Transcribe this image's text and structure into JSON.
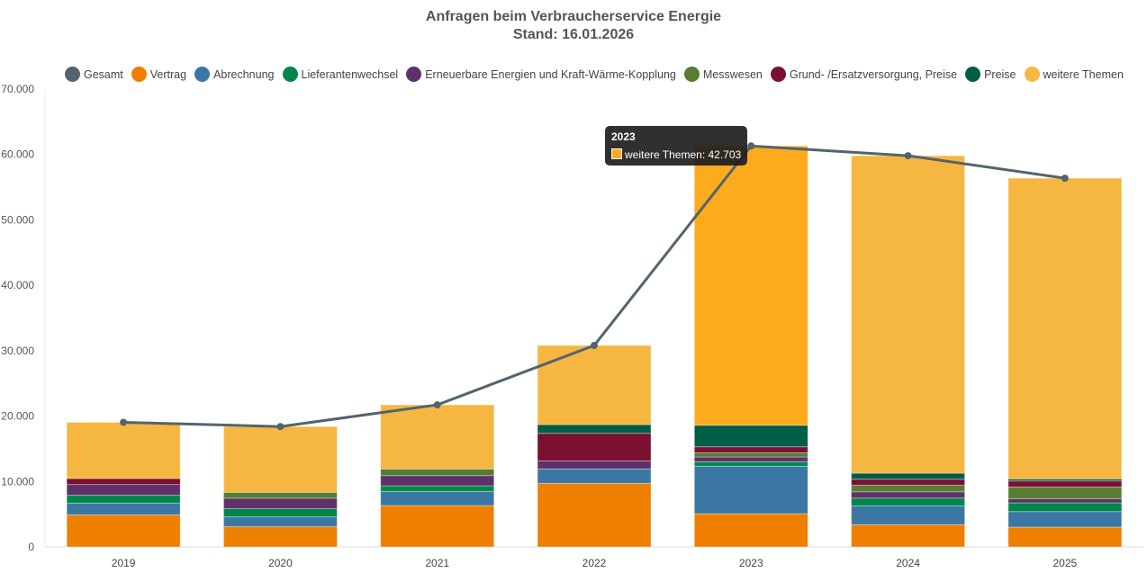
{
  "chart_data": {
    "type": "bar",
    "stacked": true,
    "title": "Anfragen beim Verbraucherservice Energie",
    "subtitle": "Stand: 16.01.2026",
    "categories": [
      "2019",
      "2020",
      "2021",
      "2022",
      "2023",
      "2024",
      "2025"
    ],
    "ylim": [
      0,
      70000
    ],
    "yticks": [
      "0",
      "10.000",
      "20.000",
      "30.000",
      "40.000",
      "50.000",
      "60.000",
      "70.000"
    ],
    "legend_position": "top",
    "series": [
      {
        "name": "Vertrag",
        "color": "#ee7f00",
        "values": [
          4900,
          3100,
          6330,
          9720,
          5090,
          3390,
          3030
        ]
      },
      {
        "name": "Abrechnung",
        "color": "#3b77a3",
        "values": [
          1800,
          1500,
          2150,
          2200,
          7240,
          2890,
          2370
        ]
      },
      {
        "name": "Lieferantenwechsel",
        "color": "#00864a",
        "values": [
          1200,
          1250,
          870,
          0,
          690,
          1190,
          1340
        ]
      },
      {
        "name": "Erneuerbare Energien und Kraft-Wärme-Kopplung",
        "color": "#5f316b",
        "values": [
          1650,
          1600,
          1560,
          1240,
          730,
          960,
          640
        ]
      },
      {
        "name": "Messwesen",
        "color": "#577c33",
        "values": [
          0,
          900,
          1010,
          0,
          650,
          1010,
          1790
        ]
      },
      {
        "name": "Grund- /Ersatzversorgung, Preise",
        "color": "#7a0f2f",
        "values": [
          900,
          0,
          0,
          4210,
          910,
          910,
          910
        ]
      },
      {
        "name": "Preise",
        "color": "#005e46",
        "values": [
          0,
          0,
          0,
          1330,
          3290,
          920,
          320
        ]
      },
      {
        "name": "weitere Themen",
        "color": "#f5b741",
        "values": [
          8600,
          10050,
          9800,
          12100,
          42703,
          48540,
          45970
        ]
      }
    ],
    "line": {
      "name": "Gesamt",
      "color": "#53646e",
      "values": [
        19050,
        18400,
        21720,
        30800,
        61303,
        59810,
        56370
      ]
    },
    "tooltip": {
      "title": "2023",
      "text": "weitere Themen: 42.703",
      "highlight_color": "#fdab1c"
    }
  }
}
